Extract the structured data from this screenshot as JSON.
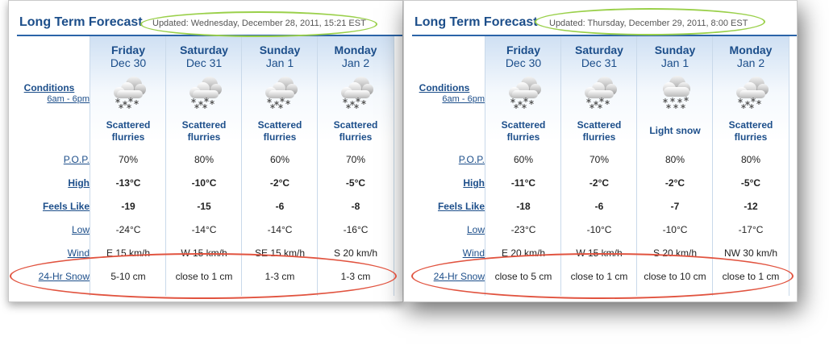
{
  "left": {
    "title": "Long Term Forecast",
    "updated": "Updated: Wednesday, December 28, 2011, 15:21 EST",
    "labels": {
      "conditions": "Conditions",
      "conditions_sub": "6am - 6pm",
      "pop": "P.O.P.",
      "high": "High",
      "feels_like": "Feels Like",
      "low": "Low",
      "wind": "Wind",
      "snow": "24-Hr Snow"
    },
    "days": [
      {
        "day": "Friday",
        "date": "Dec 30",
        "cond1": "Scattered",
        "cond2": "flurries",
        "icon": "scattered-flurries-icon",
        "pop": "70%",
        "high": "-13°C",
        "feels": "-19",
        "low": "-24°C",
        "wind": "E 15 km/h",
        "snow": "5-10 cm"
      },
      {
        "day": "Saturday",
        "date": "Dec 31",
        "cond1": "Scattered",
        "cond2": "flurries",
        "icon": "scattered-flurries-icon",
        "pop": "80%",
        "high": "-10°C",
        "feels": "-15",
        "low": "-14°C",
        "wind": "W 15 km/h",
        "snow": "close to 1 cm"
      },
      {
        "day": "Sunday",
        "date": "Jan 1",
        "cond1": "Scattered",
        "cond2": "flurries",
        "icon": "scattered-flurries-icon",
        "pop": "60%",
        "high": "-2°C",
        "feels": "-6",
        "low": "-14°C",
        "wind": "SE 15 km/h",
        "snow": "1-3 cm"
      },
      {
        "day": "Monday",
        "date": "Jan 2",
        "cond1": "Scattered",
        "cond2": "flurries",
        "icon": "scattered-flurries-icon",
        "pop": "70%",
        "high": "-5°C",
        "feels": "-8",
        "low": "-16°C",
        "wind": "S 20 km/h",
        "snow": "1-3 cm"
      }
    ]
  },
  "right": {
    "title": "Long Term Forecast",
    "updated": "Updated: Thursday, December 29, 2011, 8:00 EST",
    "labels": {
      "conditions": "Conditions",
      "conditions_sub": "6am - 6pm",
      "pop": "P.O.P.",
      "high": "High",
      "feels_like": "Feels Like",
      "low": "Low",
      "wind": "Wind",
      "snow": "24-Hr Snow"
    },
    "days": [
      {
        "day": "Friday",
        "date": "Dec 30",
        "cond1": "Scattered",
        "cond2": "flurries",
        "icon": "scattered-flurries-icon",
        "pop": "60%",
        "high": "-11°C",
        "feels": "-18",
        "low": "-23°C",
        "wind": "E 20 km/h",
        "snow": "close to 5 cm"
      },
      {
        "day": "Saturday",
        "date": "Dec 31",
        "cond1": "Scattered",
        "cond2": "flurries",
        "icon": "scattered-flurries-icon",
        "pop": "70%",
        "high": "-2°C",
        "feels": "-6",
        "low": "-10°C",
        "wind": "W 15 km/h",
        "snow": "close to 1 cm"
      },
      {
        "day": "Sunday",
        "date": "Jan 1",
        "cond1": "Light snow",
        "cond2": "",
        "icon": "light-snow-icon",
        "pop": "80%",
        "high": "-2°C",
        "feels": "-7",
        "low": "-10°C",
        "wind": "S 20 km/h",
        "snow": "close to 10 cm"
      },
      {
        "day": "Monday",
        "date": "Jan 2",
        "cond1": "Scattered",
        "cond2": "flurries",
        "icon": "scattered-flurries-icon",
        "pop": "80%",
        "high": "-5°C",
        "feels": "-12",
        "low": "-17°C",
        "wind": "NW 30 km/h",
        "snow": "close to 1 cm"
      }
    ]
  },
  "annotation_colors": {
    "green_highlight": "#9ad04a",
    "red_highlight": "#e1533f",
    "brand_blue": "#1c4e8a"
  }
}
